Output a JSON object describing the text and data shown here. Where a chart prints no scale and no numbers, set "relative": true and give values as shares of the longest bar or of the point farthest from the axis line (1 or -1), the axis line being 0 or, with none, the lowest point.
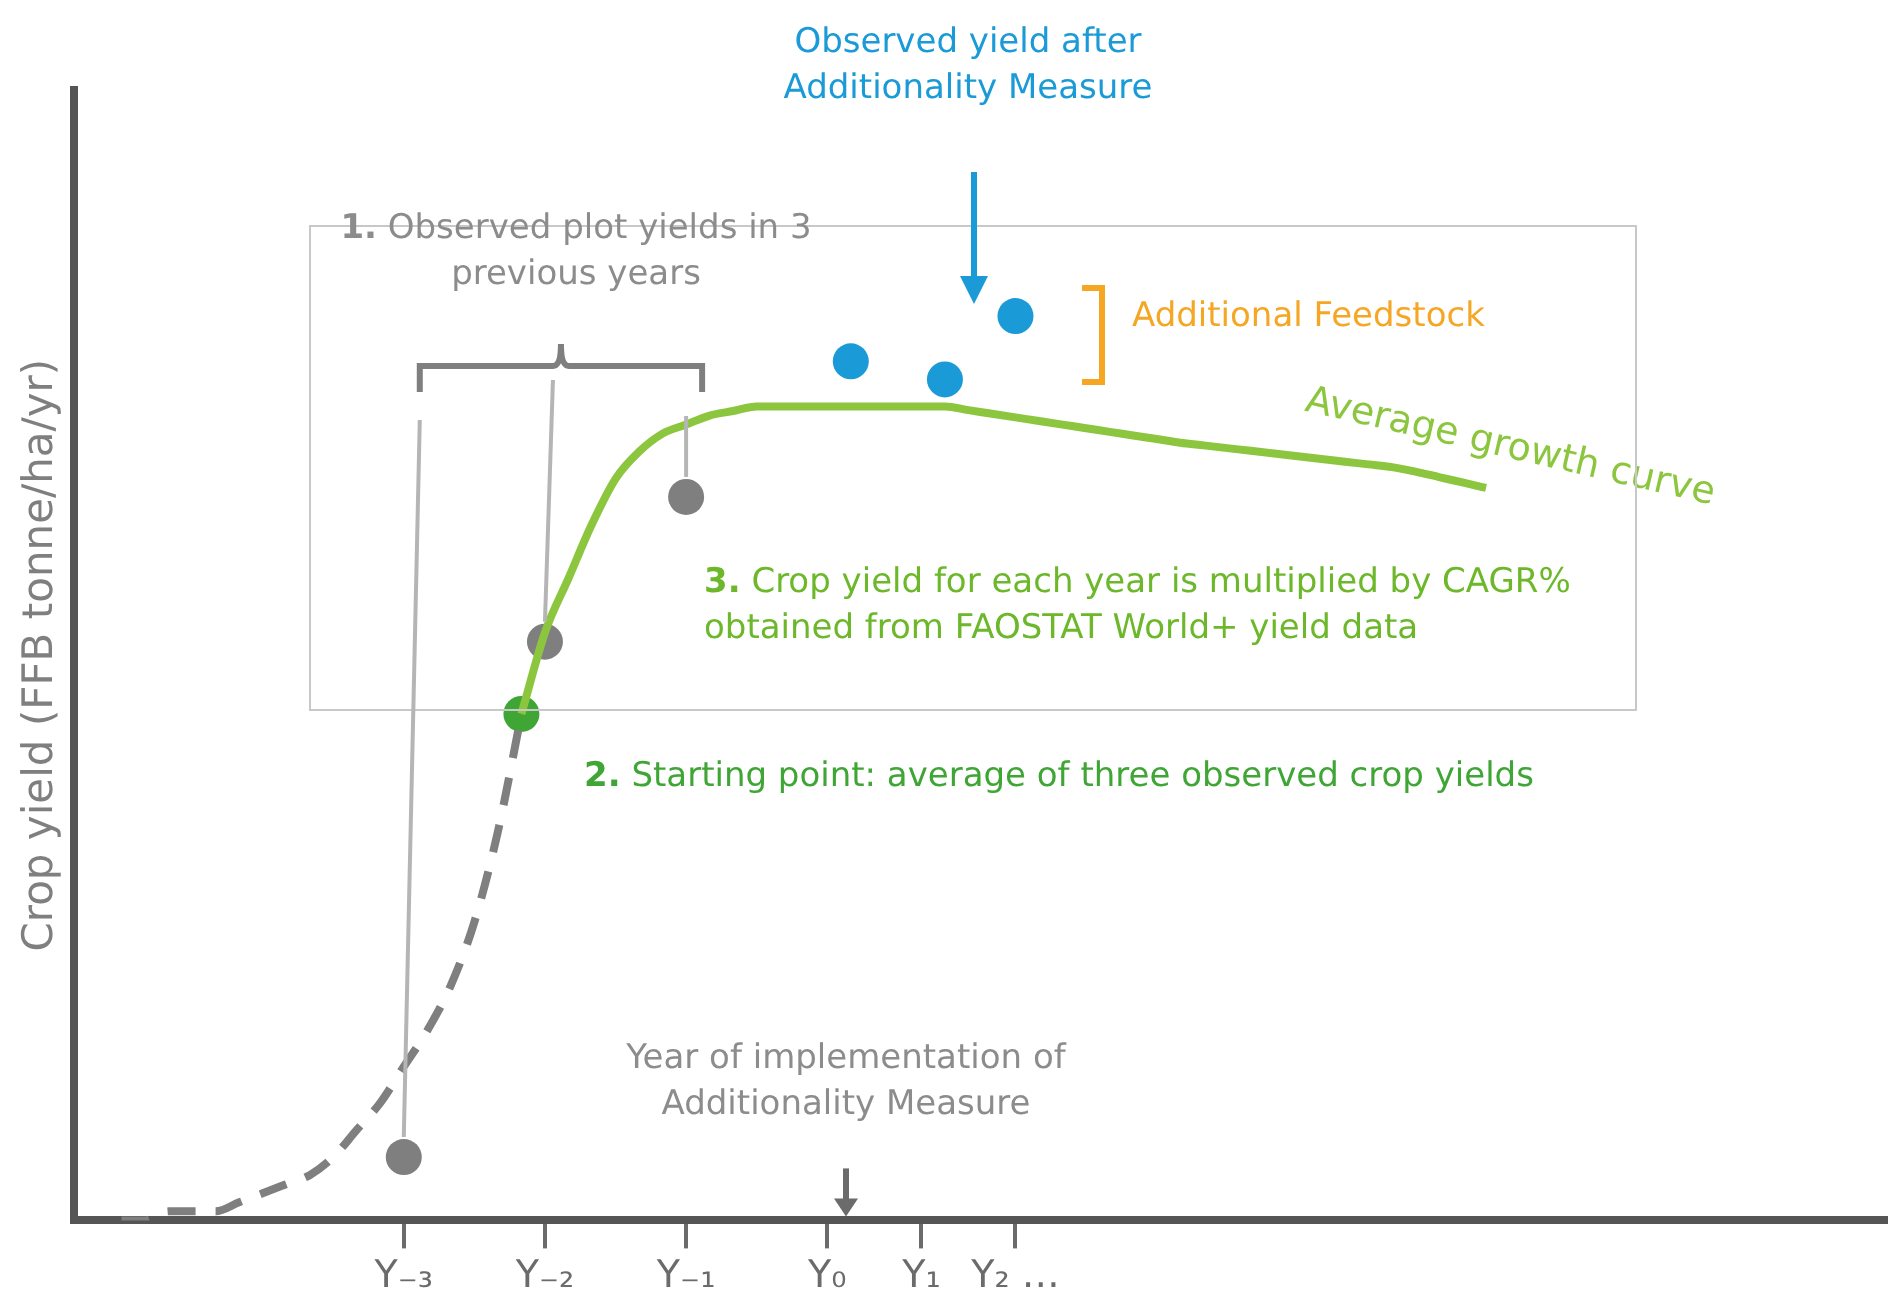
{
  "chart_data": {
    "type": "line",
    "relative": true,
    "ylabel": "Crop yield (FFB tonne/ha/yr)",
    "categories": [
      null,
      null,
      null,
      null,
      null,
      null,
      null,
      null,
      null,
      null,
      null,
      null,
      null,
      null,
      "Y₋₃",
      null,
      null,
      null,
      null,
      null,
      "Y₋₂",
      null,
      null,
      null,
      null,
      null,
      "Y₋₁",
      null,
      null,
      null,
      null,
      null,
      "Y₀",
      null,
      null,
      null,
      "Y₁",
      null,
      null,
      null,
      "Y₂ …",
      null,
      null,
      null,
      null,
      null,
      null,
      null,
      null,
      null,
      null,
      null,
      null,
      null,
      null,
      null,
      null,
      null,
      null,
      null,
      null,
      null,
      null,
      null,
      null,
      null,
      null,
      null,
      null,
      null,
      null,
      null,
      null,
      null,
      null,
      null,
      null,
      null
    ],
    "grid": false,
    "legend": false,
    "marker": "circle",
    "annotations": [
      "Observed yield after Additionality Measure",
      "1. Observed plot yields in 3 previous years",
      "Additional Feedstock",
      "3. Crop yield for each year is multiplied by CAGR% obtained from FAOSTAT World+ yield data",
      "2. Starting point: average of three observed crop yields",
      "Year of implementation of Additionality Measure"
    ],
    "series": [
      {
        "color": "#7f7f7f",
        "line_style": "dashed",
        "marker": "none",
        "values": [
          null,
          null,
          0,
          0,
          0.01,
          0.01,
          0.01,
          0.02,
          0.03,
          0.04,
          0.05,
          0.07,
          0.1,
          0.13,
          0.17,
          0.21,
          0.26,
          0.33,
          0.43,
          0.56,
          null,
          null,
          null,
          null,
          null,
          null,
          null,
          null,
          null,
          null,
          null,
          null,
          null,
          null,
          null,
          null,
          null,
          null,
          null,
          null,
          null,
          null,
          null,
          null,
          null,
          null,
          null,
          null,
          null,
          null,
          null,
          null,
          null,
          null,
          null,
          null,
          null,
          null,
          null,
          null,
          null,
          null,
          null,
          null,
          null,
          null,
          null,
          null,
          null,
          null,
          null,
          null,
          null,
          null,
          null,
          null,
          null,
          null
        ]
      },
      {
        "name": "Average growth curve",
        "color": "#8cc63f",
        "marker": "none",
        "values": [
          null,
          null,
          null,
          null,
          null,
          null,
          null,
          null,
          null,
          null,
          null,
          null,
          null,
          null,
          null,
          null,
          null,
          null,
          null,
          0.56,
          0.65,
          0.71,
          0.77,
          0.82,
          0.85,
          0.87,
          0.88,
          0.89,
          0.895,
          0.9,
          0.9,
          0.9,
          0.9,
          0.9,
          0.9,
          0.9,
          0.9,
          0.9,
          0.896,
          0.892,
          0.888,
          0.884,
          0.88,
          0.876,
          0.872,
          0.868,
          0.864,
          0.86,
          0.857,
          0.854,
          0.851,
          0.848,
          0.845,
          0.842,
          0.839,
          0.836,
          0.833,
          0.828,
          0.822,
          0.816,
          0.81,
          null,
          null,
          null,
          null,
          null,
          null,
          null,
          null,
          null,
          null,
          null,
          null,
          null,
          null,
          null,
          null,
          null
        ]
      },
      {
        "type": "scatter",
        "color": "#7f7f7f",
        "values": [
          null,
          null,
          null,
          null,
          null,
          null,
          null,
          null,
          null,
          null,
          null,
          null,
          null,
          null,
          0.07,
          null,
          null,
          null,
          null,
          null,
          0.64,
          null,
          null,
          null,
          null,
          null,
          0.8,
          null,
          null,
          null,
          null,
          null,
          null,
          null,
          null,
          null,
          null,
          null,
          null,
          null,
          null,
          null,
          null,
          null,
          null,
          null,
          null,
          null,
          null,
          null,
          null,
          null,
          null,
          null,
          null,
          null,
          null,
          null,
          null,
          null,
          null,
          null,
          null,
          null,
          null,
          null,
          null,
          null,
          null,
          null,
          null,
          null,
          null,
          null,
          null,
          null,
          null,
          null
        ]
      },
      {
        "type": "scatter",
        "color": "#3fa535",
        "values": [
          null,
          null,
          null,
          null,
          null,
          null,
          null,
          null,
          null,
          null,
          null,
          null,
          null,
          null,
          null,
          null,
          null,
          null,
          null,
          0.56,
          null,
          null,
          null,
          null,
          null,
          null,
          null,
          null,
          null,
          null,
          null,
          null,
          null,
          null,
          null,
          null,
          null,
          null,
          null,
          null,
          null,
          null,
          null,
          null,
          null,
          null,
          null,
          null,
          null,
          null,
          null,
          null,
          null,
          null,
          null,
          null,
          null,
          null,
          null,
          null,
          null,
          null,
          null,
          null,
          null,
          null,
          null,
          null,
          null,
          null,
          null,
          null,
          null,
          null,
          null,
          null,
          null,
          null
        ]
      },
      {
        "type": "scatter",
        "color": "#1a9ad6",
        "values": [
          null,
          null,
          null,
          null,
          null,
          null,
          null,
          null,
          null,
          null,
          null,
          null,
          null,
          null,
          null,
          null,
          null,
          null,
          null,
          null,
          null,
          null,
          null,
          null,
          null,
          null,
          null,
          null,
          null,
          null,
          null,
          null,
          null,
          0.95,
          null,
          null,
          null,
          0.93,
          null,
          null,
          1,
          null,
          null,
          null,
          null,
          null,
          null,
          null,
          null,
          null,
          null,
          null,
          null,
          null,
          null,
          null,
          null,
          null,
          null,
          null,
          null,
          null,
          null,
          null,
          null,
          null,
          null,
          null,
          null,
          null,
          null,
          null,
          null,
          null,
          null,
          null,
          null,
          null
        ]
      }
    ]
  }
}
